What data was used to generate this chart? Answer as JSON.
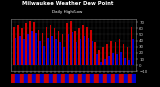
{
  "title": "Milwaukee Weather Dew Point",
  "subtitle": "Daily High/Low",
  "high_color": "#cc0000",
  "low_color": "#0000cc",
  "background_color": "#000000",
  "plot_bg_color": "#000000",
  "title_color": "#ffffff",
  "ylim": [
    -10,
    75
  ],
  "ytick_values": [
    -10,
    0,
    10,
    20,
    30,
    40,
    50,
    60,
    70
  ],
  "high_values": [
    62,
    65,
    60,
    68,
    72,
    70,
    58,
    52,
    62,
    65,
    60,
    55,
    50,
    68,
    72,
    56,
    60,
    65,
    62,
    58,
    38,
    25,
    30,
    35,
    40,
    38,
    42,
    35,
    30,
    62
  ],
  "low_values": [
    45,
    48,
    42,
    50,
    55,
    52,
    40,
    32,
    44,
    48,
    43,
    38,
    30,
    50,
    54,
    38,
    42,
    48,
    44,
    40,
    18,
    5,
    10,
    15,
    20,
    18,
    22,
    12,
    8,
    42
  ],
  "bar_width": 0.4,
  "x_label_fontsize": 2.5,
  "y_label_fontsize": 2.8,
  "title_fontsize": 3.8,
  "subtitle_fontsize": 3.0,
  "legend_fontsize": 2.5,
  "legend_high_label": "High",
  "legend_low_label": "Low",
  "grid_color": "#888888",
  "tick_color": "#cccccc",
  "spine_color": "#888888"
}
